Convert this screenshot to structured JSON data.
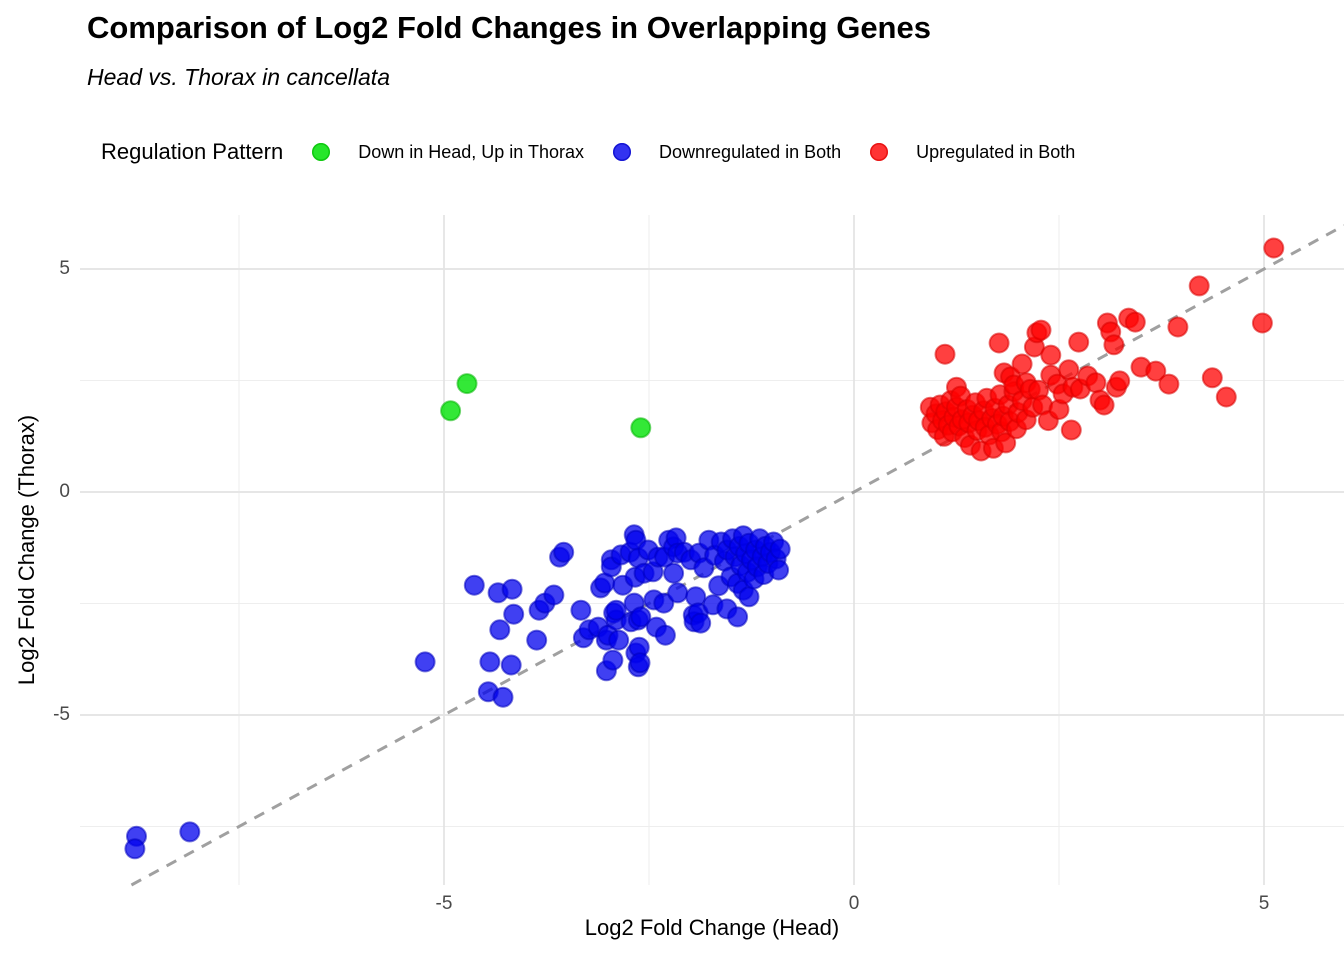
{
  "title": "Comparison of Log2 Fold Changes in Overlapping Genes",
  "subtitle": "Head vs. Thorax in cancellata",
  "legend": {
    "title": "Regulation Pattern"
  },
  "axes": {
    "x": {
      "label": "Log2 Fold Change (Head)",
      "major_ticks": [
        -5,
        0,
        5
      ],
      "minor_ticks": [
        -7.5,
        -2.5,
        2.5
      ]
    },
    "y": {
      "label": "Log2 Fold Change (Thorax)",
      "major_ticks": [
        5,
        0,
        -5
      ],
      "minor_ticks": [
        2.5,
        -2.5,
        -7.5
      ]
    }
  },
  "colors": {
    "grid_major": "#e3e3e3",
    "grid_minor": "#eeeeee",
    "reference_line": "#a0a0a0",
    "tick_text": "#4a4a4a"
  },
  "chart_data": {
    "type": "scatter",
    "title": "Comparison of Log2 Fold Changes in Overlapping Genes",
    "subtitle": "Head vs. Thorax in cancellata",
    "xlabel": "Log2 Fold Change (Head)",
    "ylabel": "Log2 Fold Change (Thorax)",
    "xlim": [
      -9.4,
      6.0
    ],
    "ylim": [
      -8.8,
      6.2
    ],
    "grid": "major and minor gridlines, light gray on white",
    "legend_position": "top",
    "reference_line": {
      "type": "identity y=x",
      "style": "dashed",
      "color": "#a0a0a0"
    },
    "series": [
      {
        "name": "Down in Head, Up in Thorax",
        "color": "#00e205",
        "stroke": "#00b400",
        "opacity": 0.8,
        "points": [
          [
            -4.72,
            2.43
          ],
          [
            -4.92,
            1.82
          ],
          [
            -2.6,
            1.44
          ]
        ]
      },
      {
        "name": "Downregulated in Both",
        "color": "#0000ee",
        "stroke": "#0000c0",
        "opacity": 0.75,
        "points": [
          [
            -8.75,
            -7.72
          ],
          [
            -8.77,
            -8.0
          ],
          [
            -8.1,
            -7.62
          ],
          [
            -5.23,
            -3.81
          ],
          [
            -4.63,
            -2.09
          ],
          [
            -4.46,
            -4.48
          ],
          [
            -4.44,
            -3.81
          ],
          [
            -4.34,
            -2.26
          ],
          [
            -4.32,
            -3.09
          ],
          [
            -4.28,
            -4.6
          ],
          [
            -4.18,
            -3.88
          ],
          [
            -4.17,
            -2.18
          ],
          [
            -4.15,
            -2.74
          ],
          [
            -3.87,
            -3.32
          ],
          [
            -3.84,
            -2.65
          ],
          [
            -3.77,
            -2.49
          ],
          [
            -3.66,
            -2.31
          ],
          [
            -3.59,
            -1.46
          ],
          [
            -3.54,
            -1.35
          ],
          [
            -3.33,
            -2.65
          ],
          [
            -3.3,
            -3.27
          ],
          [
            -3.23,
            -3.09
          ],
          [
            -3.12,
            -3.03
          ],
          [
            -3.09,
            -2.15
          ],
          [
            -3.04,
            -2.04
          ],
          [
            -3.02,
            -4.01
          ],
          [
            -3.02,
            -3.32
          ],
          [
            -3.0,
            -3.21
          ],
          [
            -2.96,
            -1.52
          ],
          [
            -2.96,
            -1.68
          ],
          [
            -2.94,
            -3.77
          ],
          [
            -2.93,
            -2.71
          ],
          [
            -2.9,
            -2.87
          ],
          [
            -2.9,
            -2.65
          ],
          [
            -2.87,
            -3.32
          ],
          [
            -2.84,
            -1.41
          ],
          [
            -2.82,
            -2.09
          ],
          [
            -2.73,
            -1.35
          ],
          [
            -2.72,
            -2.91
          ],
          [
            -2.68,
            -2.49
          ],
          [
            -2.68,
            -0.96
          ],
          [
            -2.67,
            -1.91
          ],
          [
            -2.66,
            -3.61
          ],
          [
            -2.66,
            -1.08
          ],
          [
            -2.63,
            -3.92
          ],
          [
            -2.63,
            -2.87
          ],
          [
            -2.63,
            -1.48
          ],
          [
            -2.62,
            -3.48
          ],
          [
            -2.61,
            -3.83
          ],
          [
            -2.6,
            -2.8
          ],
          [
            -2.56,
            -1.82
          ],
          [
            -2.51,
            -1.3
          ],
          [
            -2.45,
            -1.79
          ],
          [
            -2.44,
            -2.42
          ],
          [
            -2.41,
            -3.03
          ],
          [
            -2.39,
            -1.46
          ],
          [
            -2.32,
            -2.49
          ],
          [
            -2.31,
            -1.46
          ],
          [
            -2.3,
            -3.21
          ],
          [
            -2.26,
            -1.08
          ],
          [
            -2.2,
            -1.82
          ],
          [
            -2.2,
            -1.23
          ],
          [
            -2.17,
            -1.03
          ],
          [
            -2.15,
            -2.26
          ],
          [
            -2.15,
            -1.37
          ],
          [
            -2.07,
            -1.35
          ],
          [
            -1.99,
            -1.52
          ],
          [
            -1.96,
            -2.76
          ],
          [
            -1.95,
            -2.91
          ],
          [
            -1.93,
            -2.35
          ],
          [
            -1.9,
            -2.71
          ],
          [
            -1.89,
            -1.37
          ],
          [
            -1.87,
            -2.94
          ],
          [
            -1.83,
            -1.7
          ],
          [
            -1.77,
            -1.08
          ],
          [
            -1.72,
            -2.53
          ],
          [
            -1.7,
            -1.42
          ],
          [
            -1.65,
            -2.1
          ],
          [
            -1.62,
            -1.12
          ],
          [
            -1.58,
            -1.55
          ],
          [
            -1.55,
            -2.62
          ],
          [
            -1.55,
            -1.3
          ],
          [
            -1.5,
            -1.9
          ],
          [
            -1.48,
            -1.05
          ],
          [
            -1.45,
            -1.45
          ],
          [
            -1.42,
            -2.8
          ],
          [
            -1.42,
            -2.05
          ],
          [
            -1.4,
            -1.22
          ],
          [
            -1.38,
            -1.65
          ],
          [
            -1.35,
            -2.2
          ],
          [
            -1.35,
            -0.98
          ],
          [
            -1.32,
            -1.38
          ],
          [
            -1.3,
            -1.8
          ],
          [
            -1.28,
            -2.35
          ],
          [
            -1.28,
            -1.15
          ],
          [
            -1.25,
            -1.52
          ],
          [
            -1.22,
            -1.95
          ],
          [
            -1.2,
            -1.3
          ],
          [
            -1.18,
            -1.68
          ],
          [
            -1.15,
            -1.05
          ],
          [
            -1.12,
            -1.45
          ],
          [
            -1.1,
            -1.85
          ],
          [
            -1.08,
            -1.22
          ],
          [
            -1.05,
            -1.6
          ],
          [
            -1.02,
            -1.35
          ],
          [
            -0.98,
            -1.12
          ],
          [
            -0.95,
            -1.5
          ],
          [
            -0.92,
            -1.75
          ],
          [
            -0.9,
            -1.28
          ]
        ]
      },
      {
        "name": "Upregulated in Both",
        "color": "#ff0000",
        "stroke": "#d90000",
        "opacity": 0.75,
        "points": [
          [
            0.93,
            1.9
          ],
          [
            0.95,
            1.55
          ],
          [
            1.0,
            1.75
          ],
          [
            1.02,
            1.4
          ],
          [
            1.05,
            1.95
          ],
          [
            1.08,
            1.6
          ],
          [
            1.1,
            1.25
          ],
          [
            1.11,
            3.09
          ],
          [
            1.12,
            1.8
          ],
          [
            1.15,
            1.5
          ],
          [
            1.18,
            2.05
          ],
          [
            1.2,
            1.35
          ],
          [
            1.22,
            1.68
          ],
          [
            1.25,
            1.9
          ],
          [
            1.25,
            2.35
          ],
          [
            1.28,
            1.48
          ],
          [
            1.3,
            2.15
          ],
          [
            1.32,
            1.62
          ],
          [
            1.35,
            1.22
          ],
          [
            1.38,
            1.85
          ],
          [
            1.4,
            1.55
          ],
          [
            1.42,
            1.05
          ],
          [
            1.45,
            1.72
          ],
          [
            1.48,
            2.0
          ],
          [
            1.5,
            1.38
          ],
          [
            1.52,
            1.6
          ],
          [
            1.55,
            0.92
          ],
          [
            1.58,
            1.82
          ],
          [
            1.6,
            1.45
          ],
          [
            1.62,
            2.1
          ],
          [
            1.65,
            1.28
          ],
          [
            1.68,
            1.65
          ],
          [
            1.7,
            0.98
          ],
          [
            1.72,
            1.88
          ],
          [
            1.75,
            1.52
          ],
          [
            1.77,
            3.34
          ],
          [
            1.78,
            2.18
          ],
          [
            1.8,
            1.35
          ],
          [
            1.82,
            1.7
          ],
          [
            1.83,
            2.67
          ],
          [
            1.85,
            1.1
          ],
          [
            1.88,
            1.95
          ],
          [
            1.9,
            1.58
          ],
          [
            1.91,
            2.58
          ],
          [
            1.95,
            2.25
          ],
          [
            1.95,
            2.4
          ],
          [
            1.98,
            1.42
          ],
          [
            2.0,
            1.78
          ],
          [
            2.05,
            2.05
          ],
          [
            2.05,
            2.87
          ],
          [
            2.1,
            1.62
          ],
          [
            2.1,
            2.45
          ],
          [
            2.15,
            2.3
          ],
          [
            2.18,
            1.9
          ],
          [
            2.2,
            3.25
          ],
          [
            2.23,
            3.57
          ],
          [
            2.25,
            2.28
          ],
          [
            2.28,
            3.63
          ],
          [
            2.3,
            1.95
          ],
          [
            2.37,
            1.6
          ],
          [
            2.4,
            3.07
          ],
          [
            2.4,
            2.62
          ],
          [
            2.48,
            2.42
          ],
          [
            2.5,
            1.85
          ],
          [
            2.55,
            2.2
          ],
          [
            2.62,
            2.74
          ],
          [
            2.65,
            1.39
          ],
          [
            2.67,
            2.35
          ],
          [
            2.74,
            3.36
          ],
          [
            2.76,
            2.31
          ],
          [
            2.85,
            2.6
          ],
          [
            2.95,
            2.45
          ],
          [
            3.0,
            2.06
          ],
          [
            3.05,
            1.95
          ],
          [
            3.09,
            3.79
          ],
          [
            3.13,
            3.59
          ],
          [
            3.17,
            3.3
          ],
          [
            3.2,
            2.35
          ],
          [
            3.24,
            2.49
          ],
          [
            3.35,
            3.9
          ],
          [
            3.43,
            3.81
          ],
          [
            3.5,
            2.8
          ],
          [
            3.68,
            2.71
          ],
          [
            3.84,
            2.42
          ],
          [
            3.95,
            3.7
          ],
          [
            4.21,
            4.62
          ],
          [
            4.37,
            2.56
          ],
          [
            4.54,
            2.13
          ],
          [
            4.98,
            3.79
          ],
          [
            5.12,
            5.47
          ]
        ]
      }
    ]
  }
}
